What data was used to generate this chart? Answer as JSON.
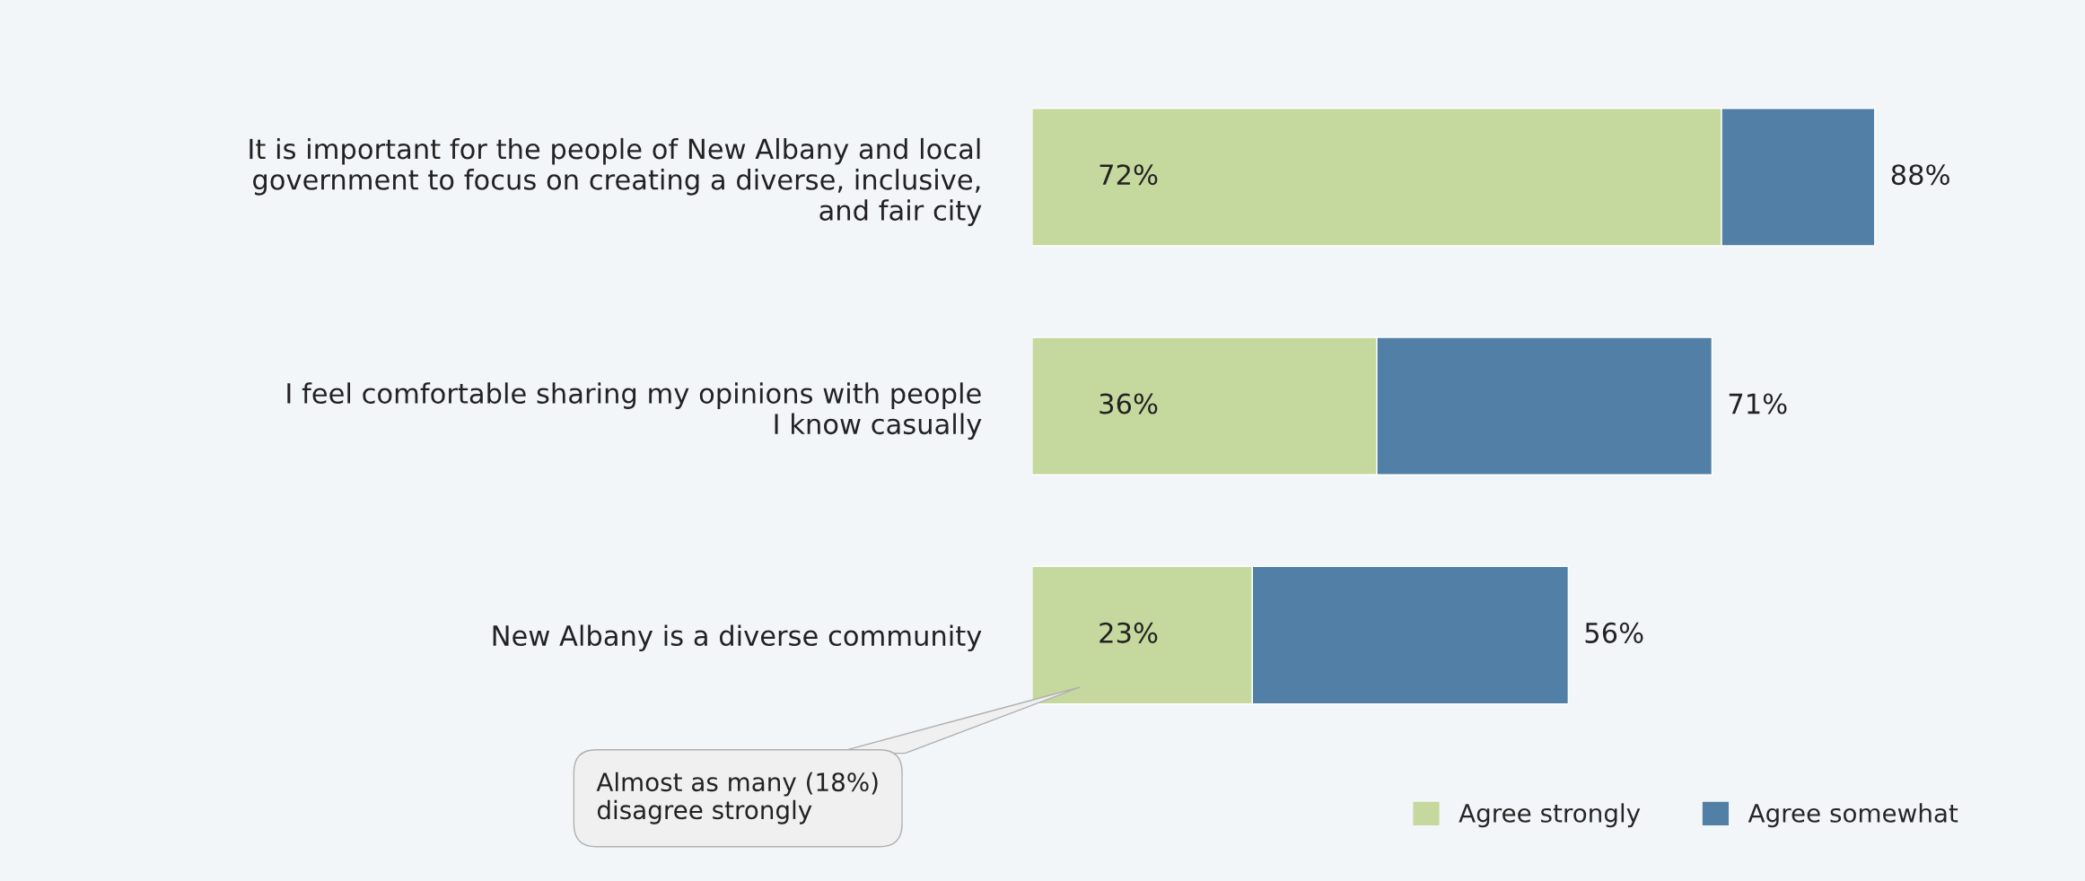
{
  "chart_data": {
    "type": "bar",
    "orientation": "horizontal",
    "stacked": true,
    "categories": [
      "It is important for the people of New Albany and local\ngovernment to focus on creating a diverse, inclusive,\nand fair city",
      "I feel comfortable sharing my opinions with people\nI know casually",
      "New Albany is a diverse community"
    ],
    "series": [
      {
        "name": "Agree strongly",
        "color": "#c5d89d",
        "values": [
          72,
          36,
          23
        ],
        "value_labels": [
          "72%",
          "36%",
          "23%"
        ]
      },
      {
        "name": "Agree somewhat",
        "color": "#527fa5",
        "values": [
          16,
          35,
          33
        ]
      }
    ],
    "totals": [
      "88%",
      "71%",
      "56%"
    ],
    "annotations": [
      "Almost as many (18%)\ndisagree strongly"
    ],
    "legend": "bottom right",
    "grid": false
  }
}
